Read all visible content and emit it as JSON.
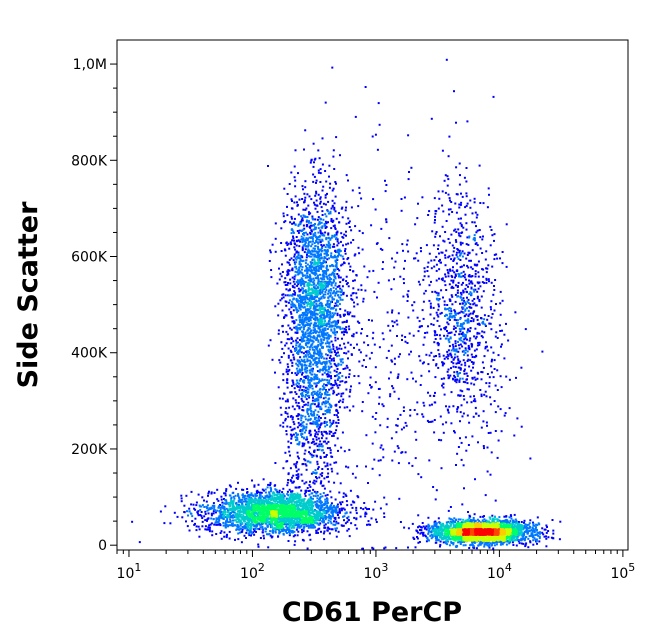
{
  "chart_data": {
    "type": "scatter",
    "subtype": "flow-cytometry density dot plot",
    "xlabel": "CD61 PerCP",
    "ylabel": "Side Scatter",
    "x_scale": "log",
    "xlim": [
      8,
      110000
    ],
    "ylim": [
      -10000,
      1050000
    ],
    "x_ticks": [
      {
        "value": 10,
        "base": "10",
        "exp": "1"
      },
      {
        "value": 100,
        "base": "10",
        "exp": "2"
      },
      {
        "value": 1000,
        "base": "10",
        "exp": "3"
      },
      {
        "value": 10000,
        "base": "10",
        "exp": "4"
      },
      {
        "value": 100000,
        "base": "10",
        "exp": "5"
      }
    ],
    "y_ticks": [
      {
        "value": 0,
        "label": "0"
      },
      {
        "value": 200000,
        "label": "200K"
      },
      {
        "value": 400000,
        "label": "400K"
      },
      {
        "value": 600000,
        "label": "600K"
      },
      {
        "value": 800000,
        "label": "800K"
      },
      {
        "value": 1000000,
        "label": "1,0M"
      }
    ],
    "populations": [
      {
        "x_center": 150,
        "y_center": 70000,
        "x_spread_log": 0.28,
        "y_spread": 22000,
        "count": 2600
      },
      {
        "x_center": 320,
        "y_center": 520000,
        "x_spread_log": 0.13,
        "y_spread": 110000,
        "count": 2200
      },
      {
        "x_center": 300,
        "y_center": 250000,
        "x_spread_log": 0.12,
        "y_spread": 90000,
        "count": 600
      },
      {
        "x_center": 7000,
        "y_center": 30000,
        "x_spread_log": 0.2,
        "y_spread": 12000,
        "count": 2600
      },
      {
        "x_center": 5000,
        "y_center": 480000,
        "x_spread_log": 0.15,
        "y_spread": 120000,
        "count": 900
      },
      {
        "x_center": 1500,
        "y_center": 400000,
        "x_spread_log": 0.35,
        "y_spread": 230000,
        "count": 400
      }
    ],
    "density_colors": [
      "#0000ff",
      "#0077ff",
      "#00cccc",
      "#00ff66",
      "#ccff00",
      "#ffcc00",
      "#ff4400",
      "#ff0000"
    ],
    "grid": false,
    "legend": "none"
  }
}
